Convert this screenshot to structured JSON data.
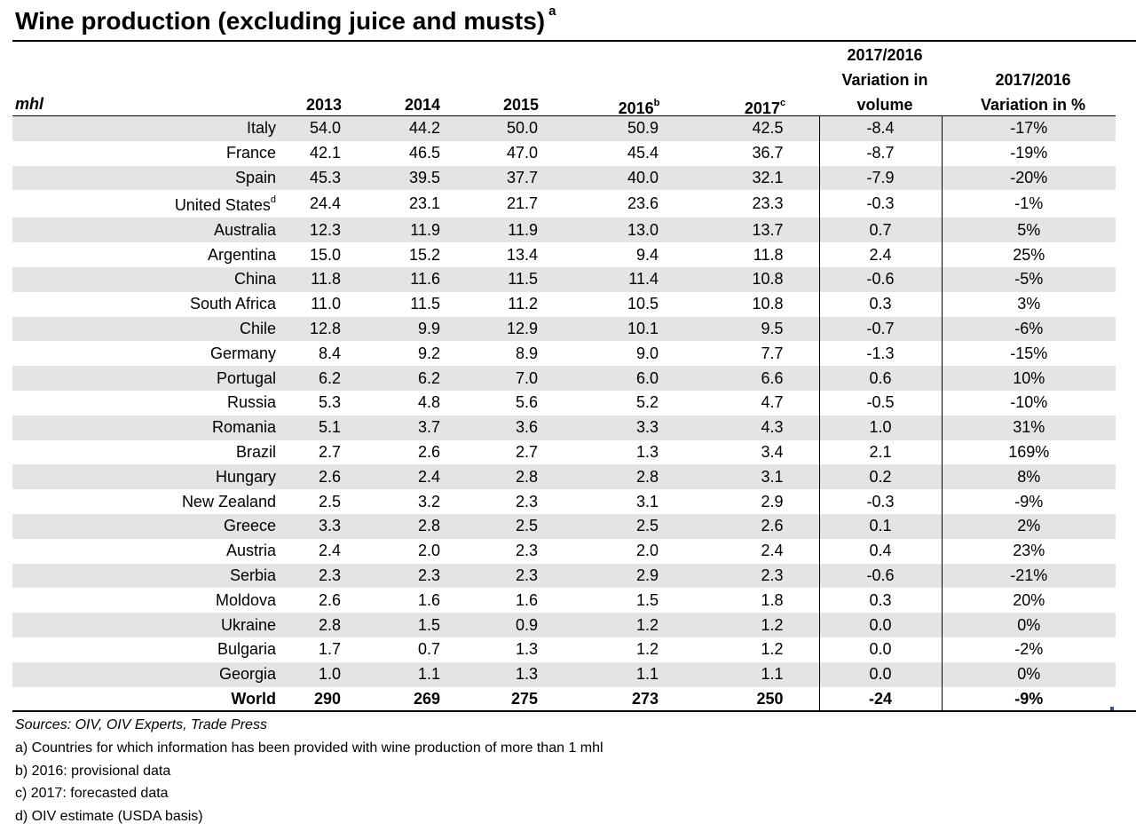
{
  "title": "Wine production (excluding juice and musts)",
  "title_sup": "a",
  "headers": {
    "unit": "mhl",
    "y2013": "2013",
    "y2014": "2014",
    "y2015": "2015",
    "y2016": "2016",
    "y2016_sup": "b",
    "y2017": "2017",
    "y2017_sup": "c",
    "vol_line1": "2017/2016",
    "vol_line2": "Variation in",
    "vol_line3": "volume",
    "pct_line1": "2017/2016",
    "pct_line2": "Variation in %"
  },
  "rows": [
    {
      "country": "Italy",
      "sup": "",
      "v2013": "54.0",
      "v2014": "44.2",
      "v2015": "50.0",
      "v2016": "50.9",
      "v2017": "42.5",
      "vol": "-8.4",
      "pct": "-17%"
    },
    {
      "country": "France",
      "sup": "",
      "v2013": "42.1",
      "v2014": "46.5",
      "v2015": "47.0",
      "v2016": "45.4",
      "v2017": "36.7",
      "vol": "-8.7",
      "pct": "-19%"
    },
    {
      "country": "Spain",
      "sup": "",
      "v2013": "45.3",
      "v2014": "39.5",
      "v2015": "37.7",
      "v2016": "40.0",
      "v2017": "32.1",
      "vol": "-7.9",
      "pct": "-20%"
    },
    {
      "country": "United States",
      "sup": "d",
      "v2013": "24.4",
      "v2014": "23.1",
      "v2015": "21.7",
      "v2016": "23.6",
      "v2017": "23.3",
      "vol": "-0.3",
      "pct": "-1%"
    },
    {
      "country": "Australia",
      "sup": "",
      "v2013": "12.3",
      "v2014": "11.9",
      "v2015": "11.9",
      "v2016": "13.0",
      "v2017": "13.7",
      "vol": "0.7",
      "pct": "5%"
    },
    {
      "country": "Argentina",
      "sup": "",
      "v2013": "15.0",
      "v2014": "15.2",
      "v2015": "13.4",
      "v2016": "9.4",
      "v2017": "11.8",
      "vol": "2.4",
      "pct": "25%"
    },
    {
      "country": "China",
      "sup": "",
      "v2013": "11.8",
      "v2014": "11.6",
      "v2015": "11.5",
      "v2016": "11.4",
      "v2017": "10.8",
      "vol": "-0.6",
      "pct": "-5%"
    },
    {
      "country": "South Africa",
      "sup": "",
      "v2013": "11.0",
      "v2014": "11.5",
      "v2015": "11.2",
      "v2016": "10.5",
      "v2017": "10.8",
      "vol": "0.3",
      "pct": "3%"
    },
    {
      "country": "Chile",
      "sup": "",
      "v2013": "12.8",
      "v2014": "9.9",
      "v2015": "12.9",
      "v2016": "10.1",
      "v2017": "9.5",
      "vol": "-0.7",
      "pct": "-6%"
    },
    {
      "country": "Germany",
      "sup": "",
      "v2013": "8.4",
      "v2014": "9.2",
      "v2015": "8.9",
      "v2016": "9.0",
      "v2017": "7.7",
      "vol": "-1.3",
      "pct": "-15%"
    },
    {
      "country": "Portugal",
      "sup": "",
      "v2013": "6.2",
      "v2014": "6.2",
      "v2015": "7.0",
      "v2016": "6.0",
      "v2017": "6.6",
      "vol": "0.6",
      "pct": "10%"
    },
    {
      "country": "Russia",
      "sup": "",
      "v2013": "5.3",
      "v2014": "4.8",
      "v2015": "5.6",
      "v2016": "5.2",
      "v2017": "4.7",
      "vol": "-0.5",
      "pct": "-10%"
    },
    {
      "country": "Romania",
      "sup": "",
      "v2013": "5.1",
      "v2014": "3.7",
      "v2015": "3.6",
      "v2016": "3.3",
      "v2017": "4.3",
      "vol": "1.0",
      "pct": "31%"
    },
    {
      "country": "Brazil",
      "sup": "",
      "v2013": "2.7",
      "v2014": "2.6",
      "v2015": "2.7",
      "v2016": "1.3",
      "v2017": "3.4",
      "vol": "2.1",
      "pct": "169%"
    },
    {
      "country": "Hungary",
      "sup": "",
      "v2013": "2.6",
      "v2014": "2.4",
      "v2015": "2.8",
      "v2016": "2.8",
      "v2017": "3.1",
      "vol": "0.2",
      "pct": "8%"
    },
    {
      "country": "New Zealand",
      "sup": "",
      "v2013": "2.5",
      "v2014": "3.2",
      "v2015": "2.3",
      "v2016": "3.1",
      "v2017": "2.9",
      "vol": "-0.3",
      "pct": "-9%"
    },
    {
      "country": "Greece",
      "sup": "",
      "v2013": "3.3",
      "v2014": "2.8",
      "v2015": "2.5",
      "v2016": "2.5",
      "v2017": "2.6",
      "vol": "0.1",
      "pct": "2%"
    },
    {
      "country": "Austria",
      "sup": "",
      "v2013": "2.4",
      "v2014": "2.0",
      "v2015": "2.3",
      "v2016": "2.0",
      "v2017": "2.4",
      "vol": "0.4",
      "pct": "23%"
    },
    {
      "country": "Serbia",
      "sup": "",
      "v2013": "2.3",
      "v2014": "2.3",
      "v2015": "2.3",
      "v2016": "2.9",
      "v2017": "2.3",
      "vol": "-0.6",
      "pct": "-21%"
    },
    {
      "country": "Moldova",
      "sup": "",
      "v2013": "2.6",
      "v2014": "1.6",
      "v2015": "1.6",
      "v2016": "1.5",
      "v2017": "1.8",
      "vol": "0.3",
      "pct": "20%"
    },
    {
      "country": "Ukraine",
      "sup": "",
      "v2013": "2.8",
      "v2014": "1.5",
      "v2015": "0.9",
      "v2016": "1.2",
      "v2017": "1.2",
      "vol": "0.0",
      "pct": "0%"
    },
    {
      "country": "Bulgaria",
      "sup": "",
      "v2013": "1.7",
      "v2014": "0.7",
      "v2015": "1.3",
      "v2016": "1.2",
      "v2017": "1.2",
      "vol": "0.0",
      "pct": "-2%"
    },
    {
      "country": "Georgia",
      "sup": "",
      "v2013": "1.0",
      "v2014": "1.1",
      "v2015": "1.3",
      "v2016": "1.1",
      "v2017": "1.1",
      "vol": "0.0",
      "pct": "0%"
    }
  ],
  "world": {
    "country": "World",
    "v2013": "290",
    "v2014": "269",
    "v2015": "275",
    "v2016": "273",
    "v2017": "250",
    "vol": "-24",
    "pct": "-9%"
  },
  "notes": {
    "sources": "Sources: OIV, OIV Experts, Trade Press",
    "a": "a) Countries for which information has been provided with wine production of more than 1 mhl",
    "b": "b) 2016: provisional data",
    "c": "c) 2017: forecasted data",
    "d": "d) OIV estimate (USDA basis)"
  },
  "colors": {
    "row_shade": "#e4e4e4",
    "corner_mark": "#2b4fa8"
  }
}
